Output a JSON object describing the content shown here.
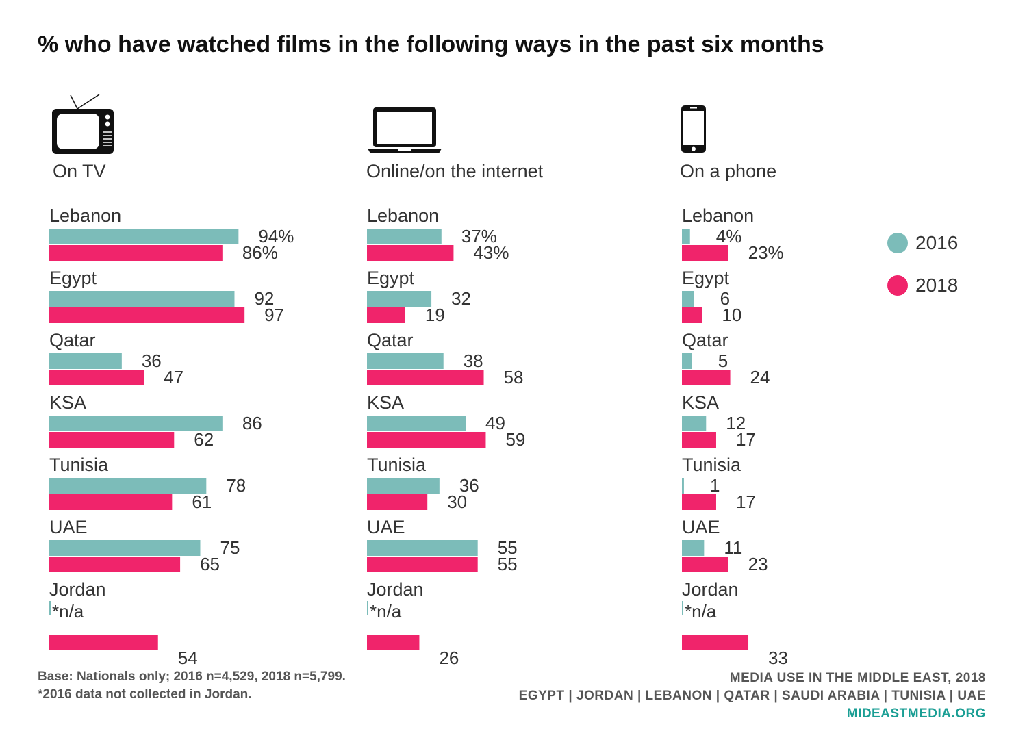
{
  "title": "% who have watched films in the following ways in the past six months",
  "colors": {
    "s2016": "#7cbcb9",
    "s2018": "#f0246b",
    "text": "#333333",
    "accent": "#1a9e94"
  },
  "legend": [
    {
      "label": "2016",
      "color": "#7cbcb9"
    },
    {
      "label": "2018",
      "color": "#f0246b"
    }
  ],
  "footnote": {
    "line1": "Base: Nationals only; 2016 n=4,529, 2018 n=5,799.",
    "line2": "*2016 data not collected in Jordan."
  },
  "footer": {
    "line1": "MEDIA USE IN THE MIDDLE EAST, 2018",
    "line2": "EGYPT | JORDAN | LEBANON | QATAR | SAUDI ARABIA | TUNISIA | UAE",
    "url": "MIDEASTMEDIA.ORG"
  },
  "chart_data": [
    {
      "type": "bar",
      "panel_label": "On TV",
      "icon": "tv-icon",
      "categories": [
        "Lebanon",
        "Egypt",
        "Qatar",
        "KSA",
        "Tunisia",
        "UAE",
        "Jordan"
      ],
      "series": [
        {
          "name": "2016",
          "values": [
            94,
            92,
            36,
            86,
            78,
            75,
            null
          ],
          "labels": [
            "94%",
            "92",
            "36",
            "86",
            "78",
            "75",
            "*n/a"
          ]
        },
        {
          "name": "2018",
          "values": [
            86,
            97,
            47,
            62,
            61,
            65,
            54
          ],
          "labels": [
            "86%",
            "97",
            "47",
            "62",
            "61",
            "65",
            "54"
          ]
        }
      ]
    },
    {
      "type": "bar",
      "panel_label": "Online/on the internet",
      "icon": "laptop-icon",
      "categories": [
        "Lebanon",
        "Egypt",
        "Qatar",
        "KSA",
        "Tunisia",
        "UAE",
        "Jordan"
      ],
      "series": [
        {
          "name": "2016",
          "values": [
            37,
            32,
            38,
            49,
            36,
            55,
            null
          ],
          "labels": [
            "37%",
            "32",
            "38",
            "49",
            "36",
            "55",
            "*n/a"
          ]
        },
        {
          "name": "2018",
          "values": [
            43,
            19,
            58,
            59,
            30,
            55,
            26
          ],
          "labels": [
            "43%",
            "19",
            "58",
            "59",
            "30",
            "55",
            "26"
          ]
        }
      ]
    },
    {
      "type": "bar",
      "panel_label": "On a phone",
      "icon": "phone-icon",
      "categories": [
        "Lebanon",
        "Egypt",
        "Qatar",
        "KSA",
        "Tunisia",
        "UAE",
        "Jordan"
      ],
      "series": [
        {
          "name": "2016",
          "values": [
            4,
            6,
            5,
            12,
            1,
            11,
            null
          ],
          "labels": [
            "4%",
            "6",
            "5",
            "12",
            "1",
            "11",
            "*n/a"
          ]
        },
        {
          "name": "2018",
          "values": [
            23,
            10,
            24,
            17,
            17,
            23,
            33
          ],
          "labels": [
            "23%",
            "10",
            "24",
            "17",
            "17",
            "23",
            "33"
          ]
        }
      ]
    }
  ]
}
